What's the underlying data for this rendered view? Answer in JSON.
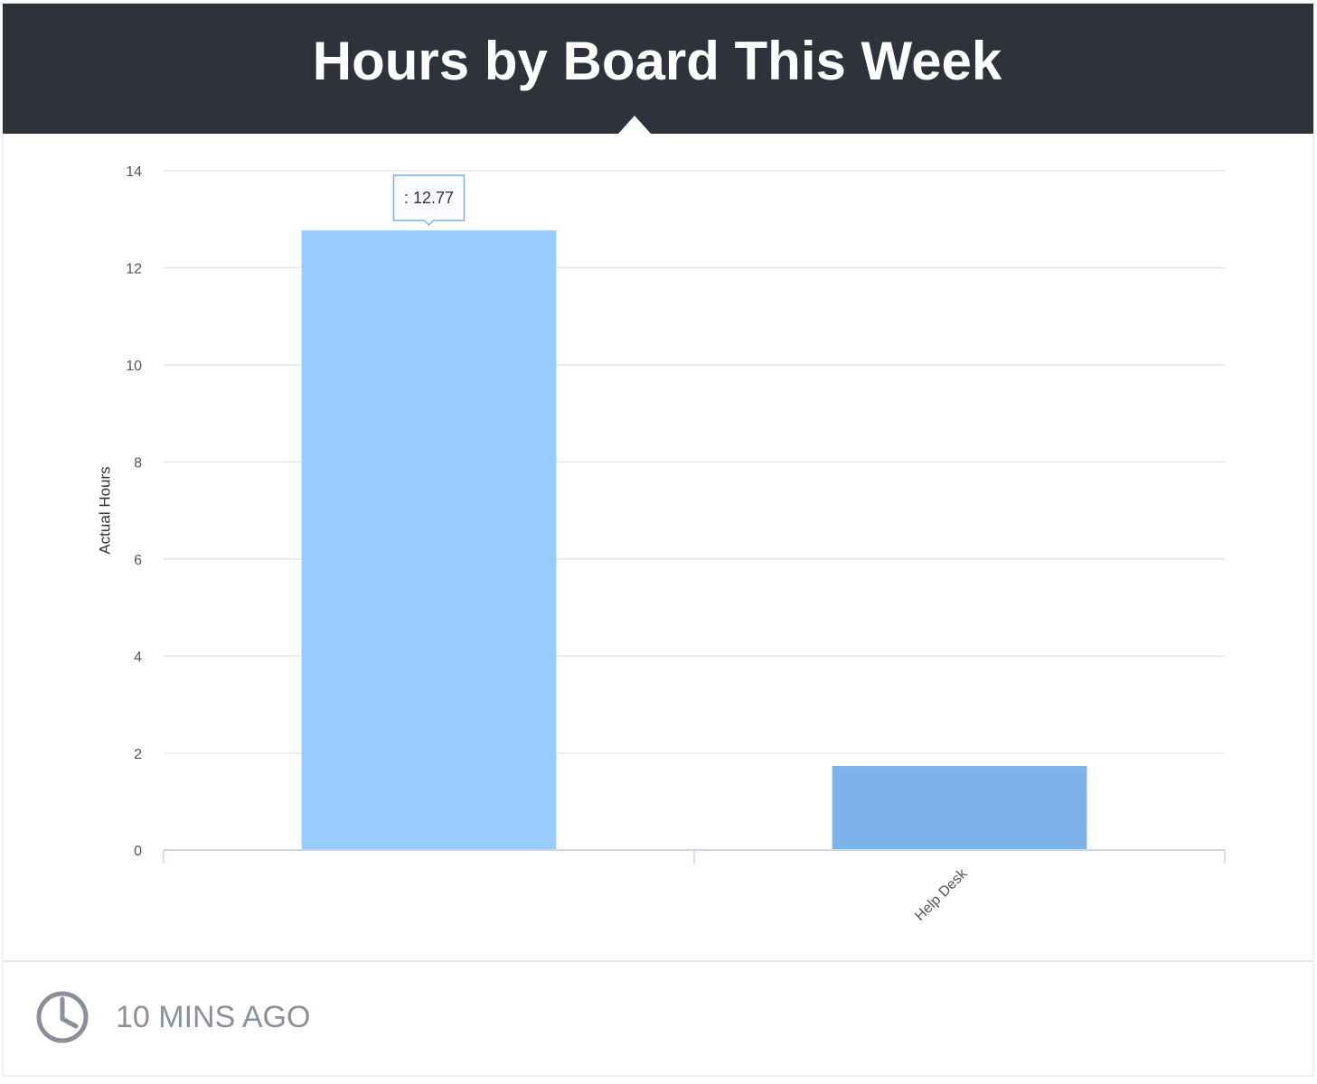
{
  "header": {
    "title": "Hours by Board This Week"
  },
  "chart_data": {
    "type": "bar",
    "y_label": "Actual Hours",
    "categories": [
      null,
      "Help Desk"
    ],
    "values": [
      12.77,
      1.73
    ],
    "value_labels": [
      ": 12.77",
      null
    ],
    "colors": [
      "#99ccfd",
      "#7bb3ea"
    ],
    "ylim": [
      0,
      14
    ],
    "yticks": [
      0,
      2,
      4,
      6,
      8,
      10,
      12,
      14
    ],
    "grid": true
  },
  "footer": {
    "updated": "10 MINS AGO"
  }
}
